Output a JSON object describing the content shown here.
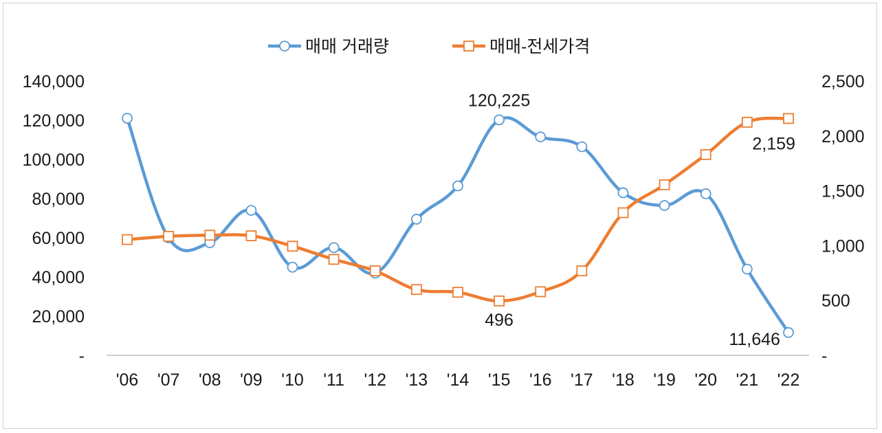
{
  "chart_data": {
    "type": "line",
    "categories": [
      "'06",
      "'07",
      "'08",
      "'09",
      "'10",
      "'11",
      "'12",
      "'13",
      "'14",
      "'15",
      "'16",
      "'17",
      "'18",
      "'19",
      "'20",
      "'21",
      "'22"
    ],
    "series": [
      {
        "name": "매매 거래량",
        "axis": "left",
        "color": "#5b9bd5",
        "marker": "circle",
        "values": [
          121000,
          60000,
          57500,
          74000,
          45000,
          55000,
          42000,
          69500,
          86500,
          120225,
          111500,
          106500,
          83000,
          76500,
          82500,
          44000,
          11646
        ]
      },
      {
        "name": "매매-전세가격",
        "axis": "right",
        "color": "#ed7d31",
        "marker": "square",
        "values": [
          1055,
          1085,
          1095,
          1090,
          995,
          875,
          770,
          600,
          575,
          496,
          580,
          770,
          1300,
          1555,
          1830,
          2125,
          2159
        ]
      }
    ],
    "y_left": {
      "min": 0,
      "max": 140000,
      "ticks": [
        "-",
        "20,000",
        "40,000",
        "60,000",
        "80,000",
        "100,000",
        "120,000",
        "140,000"
      ]
    },
    "y_right": {
      "min": 0,
      "max": 2500,
      "ticks": [
        "-",
        "500",
        "1,000",
        "1,500",
        "2,000",
        "2,500"
      ]
    },
    "data_labels": [
      {
        "series": 0,
        "index": 9,
        "text": "120,225",
        "place": "above"
      },
      {
        "series": 0,
        "index": 16,
        "text": "11,646",
        "place": "left"
      },
      {
        "series": 1,
        "index": 9,
        "text": "496",
        "place": "below"
      },
      {
        "series": 1,
        "index": 16,
        "text": "2,159",
        "place": "below-left"
      }
    ],
    "legend_position": "top-center",
    "grid": false
  }
}
